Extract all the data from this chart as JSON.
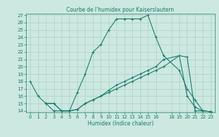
{
  "title": "Courbe de l'humidex pour Kaiserslautern",
  "xlabel": "Humidex (Indice chaleur)",
  "background_color": "#cce8e0",
  "grid_color": "#aad0c8",
  "line_color": "#1a7a6a",
  "xlim": [
    -0.5,
    23.5
  ],
  "ylim": [
    13.8,
    27.2
  ],
  "xticks": [
    0,
    1,
    2,
    3,
    4,
    5,
    6,
    7,
    8,
    9,
    10,
    11,
    12,
    13,
    14,
    15,
    16,
    18,
    19,
    20,
    21,
    22,
    23
  ],
  "yticks": [
    14,
    15,
    16,
    17,
    18,
    19,
    20,
    21,
    22,
    23,
    24,
    25,
    26,
    27
  ],
  "series": [
    {
      "x": [
        0,
        1,
        2,
        3,
        4,
        5,
        6,
        7,
        8,
        9,
        10,
        11,
        12,
        13,
        14,
        15,
        16,
        17,
        19,
        20,
        21,
        22,
        23
      ],
      "y": [
        18,
        16,
        15,
        14,
        14,
        14,
        16.5,
        19,
        22,
        23,
        25,
        26.5,
        26.5,
        26.5,
        26.5,
        27,
        24,
        21.5,
        19.5,
        17,
        15.5,
        14,
        13.9
      ]
    },
    {
      "x": [
        2,
        3,
        4,
        5,
        6,
        7,
        8,
        9,
        10,
        11,
        12,
        13,
        14,
        15,
        16,
        17,
        19,
        20,
        21,
        22,
        23
      ],
      "y": [
        15,
        15,
        14,
        14,
        14.2,
        15,
        15.5,
        16,
        16.8,
        17.5,
        18,
        18.5,
        19,
        19.5,
        20,
        21,
        21.5,
        21.3,
        14,
        14,
        13.9
      ]
    },
    {
      "x": [
        2,
        3,
        4,
        5,
        6,
        7,
        8,
        9,
        10,
        11,
        12,
        13,
        14,
        15,
        16,
        17,
        19,
        20,
        21,
        22,
        23
      ],
      "y": [
        15,
        15,
        14,
        14,
        14.2,
        15,
        15.5,
        16,
        16.5,
        17,
        17.5,
        18,
        18.5,
        19,
        19.5,
        20,
        21.5,
        16,
        14.5,
        14,
        13.9
      ]
    }
  ]
}
